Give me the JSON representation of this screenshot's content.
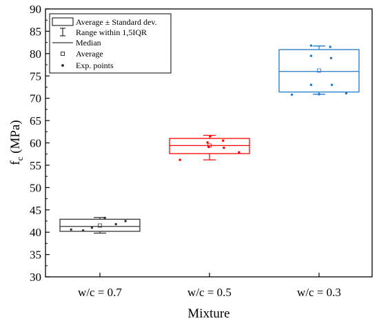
{
  "chart_data": {
    "type": "box",
    "xlabel": "Mixture",
    "ylabel_main": "f",
    "ylabel_sub": "c",
    "ylabel_unit": " (MPa)",
    "ylim": [
      30,
      90
    ],
    "yticks": [
      30,
      35,
      40,
      45,
      50,
      55,
      60,
      65,
      70,
      75,
      80,
      85,
      90
    ],
    "categories": [
      "w/c = 0.7",
      "w/c = 0.5",
      "w/c = 0.3"
    ],
    "legend": {
      "placement": "top-left",
      "items": [
        {
          "label": "Average ± Standard dev.",
          "symbol": "box"
        },
        {
          "label": "Range within 1,5IQR",
          "symbol": "whisker"
        },
        {
          "label": "Median",
          "symbol": "line"
        },
        {
          "label": "Average",
          "symbol": "square"
        },
        {
          "label": "Exp. points",
          "symbol": "dot"
        }
      ]
    },
    "series": [
      {
        "category": "w/c = 0.7",
        "color": "#333333",
        "box_low": 40.2,
        "box_high": 42.9,
        "median": 41.3,
        "mean": 41.5,
        "whisker_low": 39.8,
        "whisker_high": 43.3,
        "points": [
          {
            "offset": -0.72,
            "value": 40.6
          },
          {
            "offset": -0.42,
            "value": 40.4
          },
          {
            "offset": -0.2,
            "value": 41.0
          },
          {
            "offset": 0.12,
            "value": 43.2
          },
          {
            "offset": 0.4,
            "value": 41.8
          },
          {
            "offset": 0.64,
            "value": 42.5
          }
        ]
      },
      {
        "category": "w/c = 0.5",
        "color": "#ff0000",
        "box_low": 57.6,
        "box_high": 61.0,
        "median": 59.4,
        "mean": 59.4,
        "whisker_low": 56.2,
        "whisker_high": 61.7,
        "points": [
          {
            "offset": -0.74,
            "value": 56.2
          },
          {
            "offset": -0.05,
            "value": 60.1
          },
          {
            "offset": -0.02,
            "value": 59.1
          },
          {
            "offset": 0.02,
            "value": 61.5
          },
          {
            "offset": 0.34,
            "value": 60.5
          },
          {
            "offset": 0.36,
            "value": 58.9
          },
          {
            "offset": 0.74,
            "value": 57.9
          }
        ]
      },
      {
        "category": "w/c = 0.3",
        "color": "#1f77c9",
        "box_low": 71.4,
        "box_high": 80.9,
        "median": 76.0,
        "mean": 76.2,
        "whisker_low": 70.9,
        "whisker_high": 81.7,
        "points": [
          {
            "offset": -0.68,
            "value": 70.8
          },
          {
            "offset": -0.2,
            "value": 81.8
          },
          {
            "offset": -0.2,
            "value": 79.5
          },
          {
            "offset": -0.2,
            "value": 73.0
          },
          {
            "offset": 0.0,
            "value": 70.9
          },
          {
            "offset": 0.28,
            "value": 81.5
          },
          {
            "offset": 0.3,
            "value": 79.0
          },
          {
            "offset": 0.32,
            "value": 73.0
          },
          {
            "offset": 0.68,
            "value": 71.1
          }
        ]
      }
    ]
  }
}
